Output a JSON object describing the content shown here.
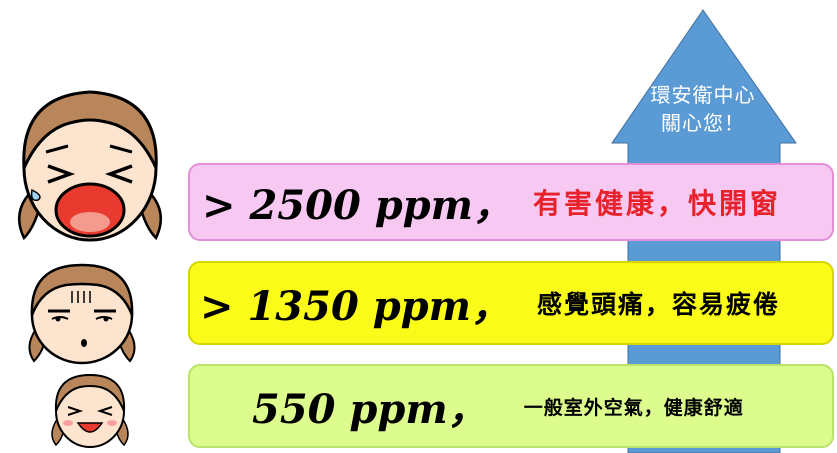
{
  "arrow": {
    "line1": "環安衛中心",
    "line2": "關心您！",
    "color": "#5b9bd5"
  },
  "levels": [
    {
      "ppm": "> 2500 ppm，",
      "description": "有害健康，快開窗",
      "bg": "#f6c8f2",
      "text_color": "#e8222b"
    },
    {
      "ppm": "> 1350 ppm，",
      "description": "感覺頭痛，容易疲倦",
      "bg": "#fbfb1a",
      "text_color": "#000000"
    },
    {
      "ppm": "550 ppm，",
      "description": "一般室外空氣，健康舒適",
      "bg": "#dcfc8e",
      "text_color": "#000000"
    }
  ],
  "faces": [
    "crying-face-icon",
    "headache-face-icon",
    "happy-face-icon"
  ]
}
